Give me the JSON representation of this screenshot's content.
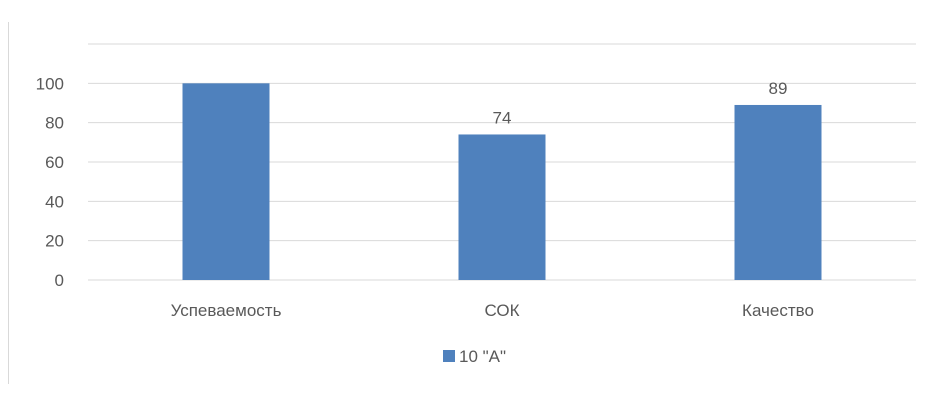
{
  "chart_data": {
    "type": "bar",
    "title": "",
    "xlabel": "",
    "ylabel": "",
    "categories": [
      "Успеваемость",
      "СОК",
      "Качество"
    ],
    "series": [
      {
        "name": "10 \"А\"",
        "values": [
          100,
          74,
          89
        ],
        "data_labels": [
          "",
          "74",
          "89"
        ],
        "color": "#4f81bd"
      }
    ],
    "ylim": [
      0,
      120
    ],
    "yticks": [
      0,
      20,
      40,
      60,
      80,
      100
    ],
    "grid": true,
    "legend_position": "bottom"
  }
}
